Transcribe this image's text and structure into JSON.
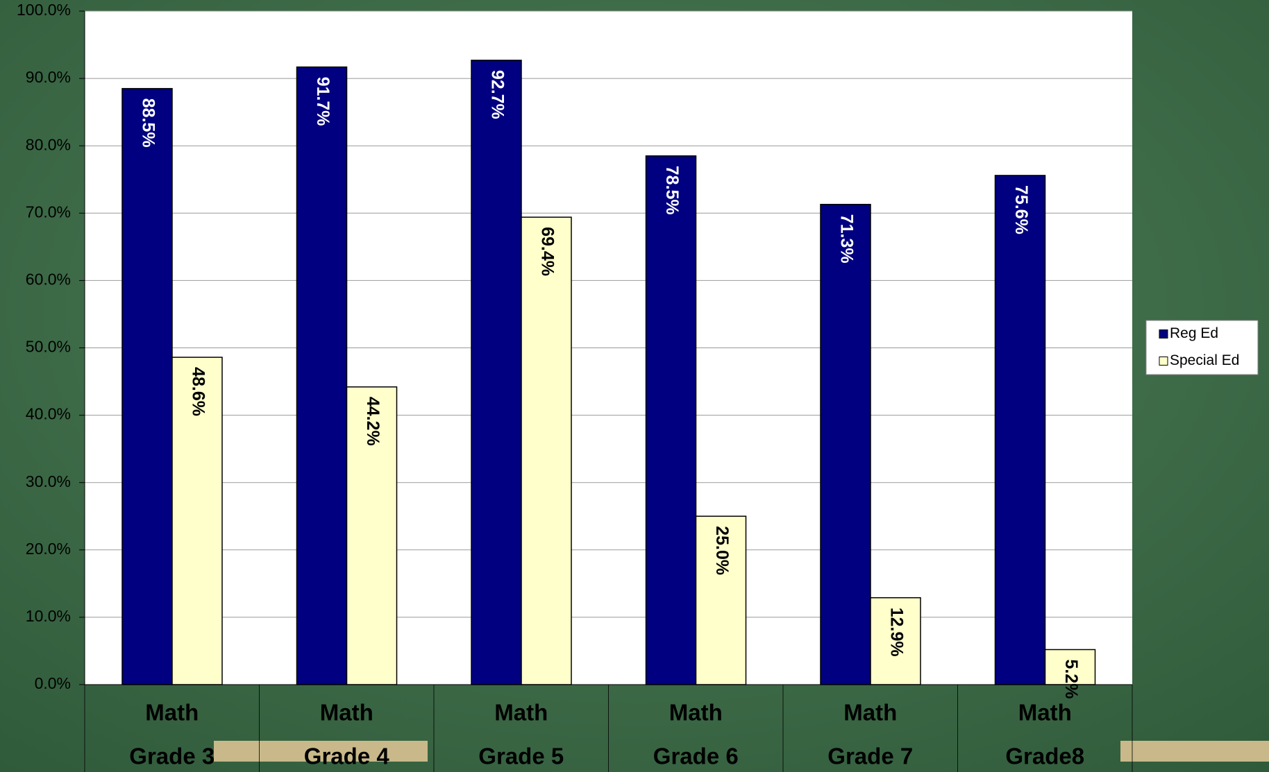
{
  "chart_data": {
    "type": "bar",
    "categories": [
      [
        "Math",
        "Grade 3"
      ],
      [
        "Math",
        "Grade 4"
      ],
      [
        "Math",
        "Grade 5"
      ],
      [
        "Math",
        "Grade 6"
      ],
      [
        "Math",
        "Grade 7"
      ],
      [
        "Math",
        "Grade8"
      ]
    ],
    "series": [
      {
        "name": "Reg Ed",
        "color": "#000080",
        "values": [
          88.5,
          91.7,
          92.7,
          78.5,
          71.3,
          75.6
        ],
        "value_labels": [
          "88.5%",
          "91.7%",
          "92.7%",
          "78.5%",
          "71.3%",
          "75.6%"
        ]
      },
      {
        "name": "Special Ed",
        "color": "#ffffcc",
        "values": [
          48.6,
          44.2,
          69.4,
          25.0,
          12.9,
          5.2
        ],
        "value_labels": [
          "48.6%",
          "44.2%",
          "69.4%",
          "25.0%",
          "12.9%",
          "5.2%"
        ]
      }
    ],
    "ylim": [
      0,
      100
    ],
    "yticks": [
      {
        "value": 0,
        "label": "0.0%"
      },
      {
        "value": 10,
        "label": "10.0%"
      },
      {
        "value": 20,
        "label": "20.0%"
      },
      {
        "value": 30,
        "label": "30.0%"
      },
      {
        "value": 40,
        "label": "40.0%"
      },
      {
        "value": 50,
        "label": "50.0%"
      },
      {
        "value": 60,
        "label": "60.0%"
      },
      {
        "value": 70,
        "label": "70.0%"
      },
      {
        "value": 80,
        "label": "80.0%"
      },
      {
        "value": 90,
        "label": "90.0%"
      },
      {
        "value": 100,
        "label": "100.0%"
      }
    ],
    "grid": true,
    "legend": "right"
  }
}
